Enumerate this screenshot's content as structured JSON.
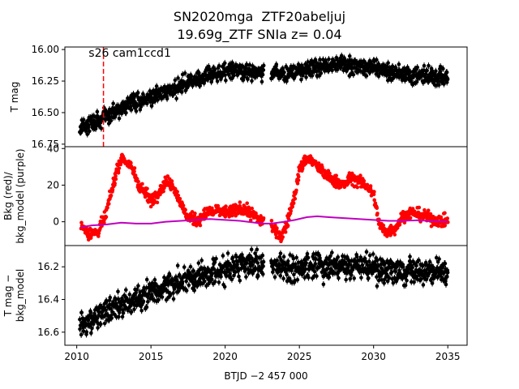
{
  "title_line1": "SN2020mga  ZTF20abeljuj",
  "title_line2": "19.69g_ZTF SNIa z= 0.04",
  "chart_data": [
    {
      "type": "scatter",
      "panel": "top",
      "ylabel": "T mag",
      "annotation": "s26 cam1ccd1",
      "y_inverted": true,
      "ylim": [
        16.77,
        15.98
      ],
      "xlim": [
        2009.2,
        2036.3
      ],
      "yticks": [
        "16.00",
        "16.25",
        "16.50",
        "16.75"
      ],
      "ytick_values": [
        16.0,
        16.25,
        16.5,
        16.75
      ],
      "vline_x": 2011.8,
      "vline_color": "#ff0000",
      "series": [
        {
          "color": "#000000",
          "trend": [
            [
              2010.2,
              16.62
            ],
            [
              2011.5,
              16.56
            ],
            [
              2013,
              16.46
            ],
            [
              2014.5,
              16.4
            ],
            [
              2016,
              16.34
            ],
            [
              2017.5,
              16.26
            ],
            [
              2019,
              16.2
            ],
            [
              2020.5,
              16.16
            ],
            [
              2022,
              16.17
            ],
            [
              2023.2,
              16.18
            ],
            [
              2024.5,
              16.19
            ],
            [
              2026,
              16.14
            ],
            [
              2027.5,
              16.12
            ],
            [
              2029,
              16.13
            ],
            [
              2030.5,
              16.16
            ],
            [
              2032,
              16.19
            ],
            [
              2033.5,
              16.21
            ],
            [
              2035,
              16.22
            ]
          ],
          "scatter": 0.065,
          "gaps": [
            [
              2022.6,
              2023.1
            ]
          ]
        }
      ]
    },
    {
      "type": "scatter",
      "panel": "middle",
      "ylabel": "Bkg (red)/ bkg_model (purple)",
      "ylim": [
        -13,
        41
      ],
      "yticks": [
        "0",
        "20",
        "40"
      ],
      "ytick_values": [
        0,
        20,
        40
      ],
      "series": [
        {
          "color": "#ff0000",
          "trend": [
            [
              2010.3,
              -2
            ],
            [
              2010.8,
              -6
            ],
            [
              2011.4,
              -6
            ],
            [
              2011.9,
              2
            ],
            [
              2012.3,
              15
            ],
            [
              2012.7,
              28
            ],
            [
              2013.0,
              35
            ],
            [
              2013.3,
              33
            ],
            [
              2013.8,
              28
            ],
            [
              2014.2,
              20
            ],
            [
              2014.6,
              16
            ],
            [
              2015.0,
              12
            ],
            [
              2015.5,
              16
            ],
            [
              2016.0,
              22
            ],
            [
              2016.5,
              20
            ],
            [
              2016.8,
              14
            ],
            [
              2017.1,
              8
            ],
            [
              2017.5,
              2
            ],
            [
              2018.2,
              1
            ],
            [
              2018.8,
              5
            ],
            [
              2019.5,
              6
            ],
            [
              2020.3,
              5
            ],
            [
              2021.0,
              7
            ],
            [
              2021.5,
              6
            ],
            [
              2022.0,
              3
            ],
            [
              2022.4,
              1
            ],
            [
              2023.0,
              0
            ],
            [
              2023.4,
              -6
            ],
            [
              2023.8,
              -8
            ],
            [
              2024.2,
              0
            ],
            [
              2024.7,
              15
            ],
            [
              2025.0,
              28
            ],
            [
              2025.5,
              35
            ],
            [
              2026.0,
              32
            ],
            [
              2026.5,
              28
            ],
            [
              2027.0,
              24
            ],
            [
              2027.5,
              22
            ],
            [
              2028.0,
              20
            ],
            [
              2028.5,
              24
            ],
            [
              2029.0,
              22
            ],
            [
              2029.5,
              20
            ],
            [
              2030.0,
              15
            ],
            [
              2030.4,
              -2
            ],
            [
              2030.9,
              -6
            ],
            [
              2031.5,
              -3
            ],
            [
              2032.0,
              3
            ],
            [
              2032.5,
              5
            ],
            [
              2033.0,
              4
            ],
            [
              2033.5,
              3
            ],
            [
              2034.0,
              1
            ],
            [
              2035.0,
              0
            ]
          ],
          "scatter": 3.2,
          "gaps": [
            [
              2022.6,
              2023.1
            ]
          ]
        },
        {
          "color": "#bf00bf",
          "line": [
            [
              2010.3,
              -3
            ],
            [
              2011.0,
              -2
            ],
            [
              2012.0,
              -1.5
            ],
            [
              2013.0,
              -0.5
            ],
            [
              2014.0,
              -1
            ],
            [
              2015.0,
              -1
            ],
            [
              2016.0,
              0
            ],
            [
              2017.0,
              0.5
            ],
            [
              2018.0,
              1
            ],
            [
              2019.0,
              1.5
            ],
            [
              2020.0,
              1
            ],
            [
              2021.0,
              0.5
            ],
            [
              2022.0,
              -0.5
            ],
            [
              2022.5,
              -1
            ],
            [
              2023.1,
              -1
            ],
            [
              2024.0,
              0
            ],
            [
              2024.7,
              1
            ],
            [
              2025.5,
              2.5
            ],
            [
              2026.2,
              3
            ],
            [
              2027.0,
              2.5
            ],
            [
              2028.0,
              2
            ],
            [
              2029.0,
              1.5
            ],
            [
              2030.0,
              1
            ],
            [
              2031.0,
              0.5
            ],
            [
              2032.0,
              0.5
            ],
            [
              2033.0,
              0.8
            ],
            [
              2034.0,
              0.3
            ],
            [
              2035.0,
              0
            ]
          ],
          "gaps": [
            [
              2022.6,
              2023.1
            ]
          ]
        }
      ]
    },
    {
      "type": "scatter",
      "panel": "bottom",
      "ylabel": "T mag − bkg_model",
      "y_inverted": true,
      "ylim": [
        16.68,
        16.07
      ],
      "yticks": [
        "16.2",
        "16.4",
        "16.6"
      ],
      "ytick_values": [
        16.2,
        16.4,
        16.6
      ],
      "xlabel": "BTJD −2 457 000",
      "xticks": [
        "2010",
        "2015",
        "2020",
        "2025",
        "2030",
        "2035"
      ],
      "xtick_values": [
        2010,
        2015,
        2020,
        2025,
        2030,
        2035
      ],
      "series": [
        {
          "color": "#000000",
          "trend": [
            [
              2010.2,
              16.56
            ],
            [
              2011.5,
              16.5
            ],
            [
              2013,
              16.44
            ],
            [
              2014.5,
              16.38
            ],
            [
              2016,
              16.33
            ],
            [
              2017.5,
              16.27
            ],
            [
              2019,
              16.24
            ],
            [
              2020.5,
              16.2
            ],
            [
              2022,
              16.18
            ],
            [
              2023.2,
              16.2
            ],
            [
              2024.5,
              16.22
            ],
            [
              2026,
              16.2
            ],
            [
              2027.5,
              16.2
            ],
            [
              2029,
              16.2
            ],
            [
              2030.5,
              16.22
            ],
            [
              2032,
              16.23
            ],
            [
              2033.5,
              16.24
            ],
            [
              2035,
              16.24
            ]
          ],
          "scatter": 0.08,
          "gaps": [
            [
              2022.6,
              2023.1
            ]
          ]
        }
      ]
    }
  ]
}
